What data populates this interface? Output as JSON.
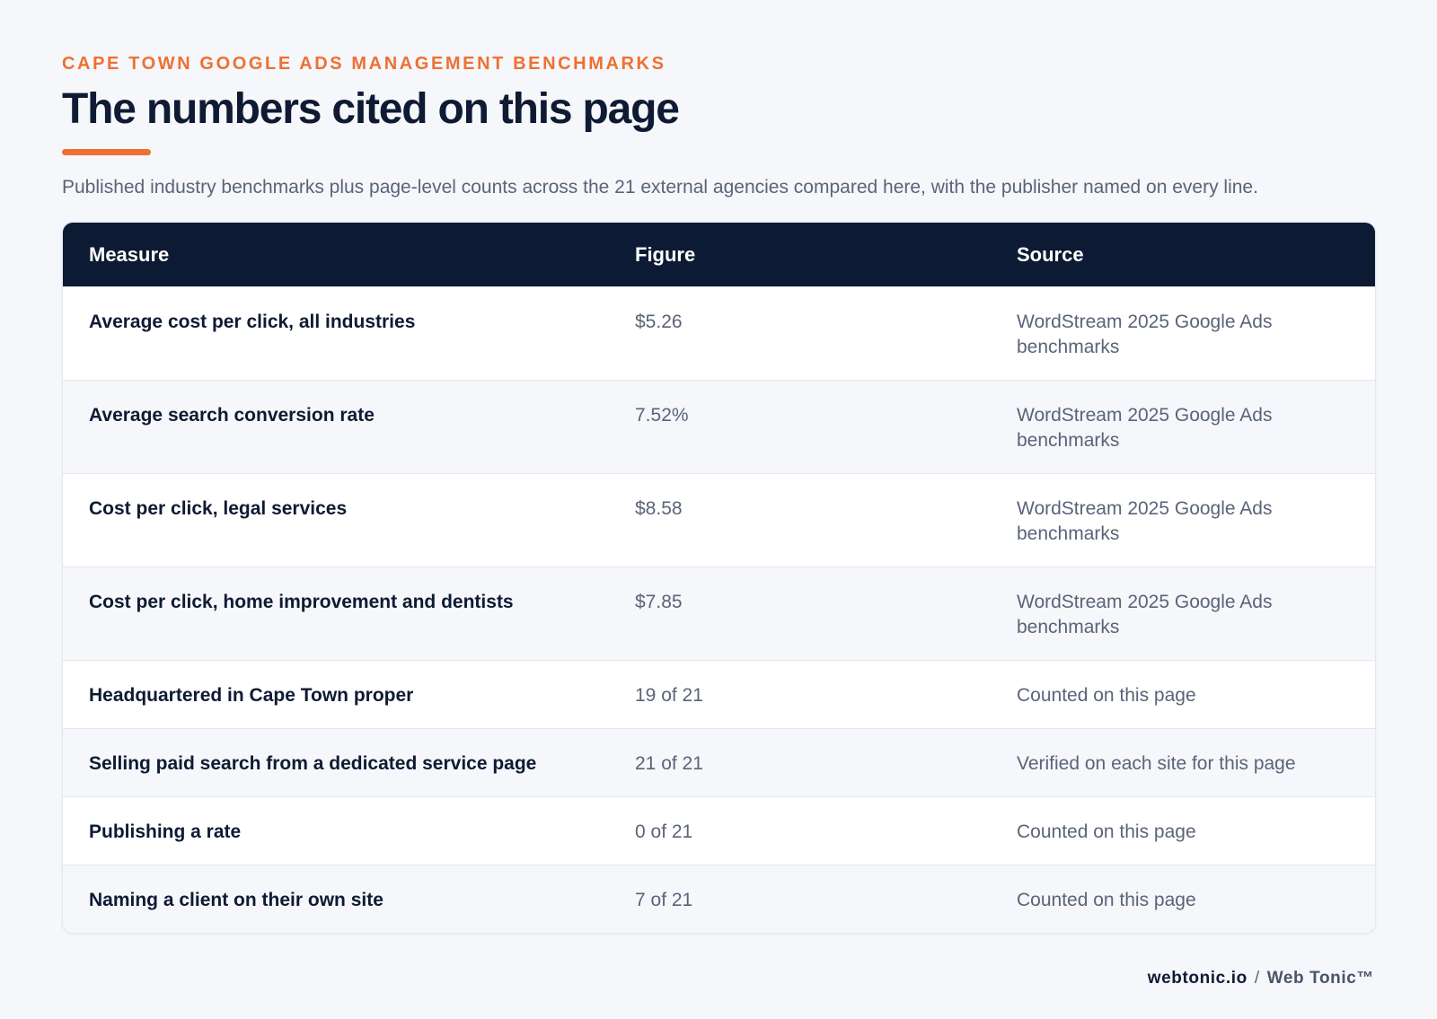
{
  "header": {
    "eyebrow": "CAPE TOWN GOOGLE ADS MANAGEMENT BENCHMARKS",
    "title": "The numbers cited on this page",
    "subtitle": "Published industry benchmarks plus page-level counts across the 21 external agencies compared here, with the publisher named on every line."
  },
  "table": {
    "columns": [
      "Measure",
      "Figure",
      "Source"
    ],
    "rows": [
      {
        "measure": "Average cost per click, all industries",
        "figure": "$5.26",
        "source": "WordStream 2025 Google Ads benchmarks"
      },
      {
        "measure": "Average search conversion rate",
        "figure": "7.52%",
        "source": "WordStream 2025 Google Ads benchmarks"
      },
      {
        "measure": "Cost per click, legal services",
        "figure": "$8.58",
        "source": "WordStream 2025 Google Ads benchmarks"
      },
      {
        "measure": "Cost per click, home improvement and dentists",
        "figure": "$7.85",
        "source": "WordStream 2025 Google Ads benchmarks"
      },
      {
        "measure": "Headquartered in Cape Town proper",
        "figure": "19 of 21",
        "source": "Counted on this page"
      },
      {
        "measure": "Selling paid search from a dedicated service page",
        "figure": "21 of 21",
        "source": "Verified on each site for this page"
      },
      {
        "measure": "Publishing a rate",
        "figure": "0 of 21",
        "source": "Counted on this page"
      },
      {
        "measure": "Naming a client on their own site",
        "figure": "7 of 21",
        "source": "Counted on this page"
      }
    ]
  },
  "footer": {
    "domain": "webtonic.io",
    "separator": "/",
    "brand": "Web Tonic™"
  },
  "colors": {
    "accent": "#ee7032",
    "header_bg": "#0d1a33",
    "page_bg": "#f5f7fa"
  }
}
